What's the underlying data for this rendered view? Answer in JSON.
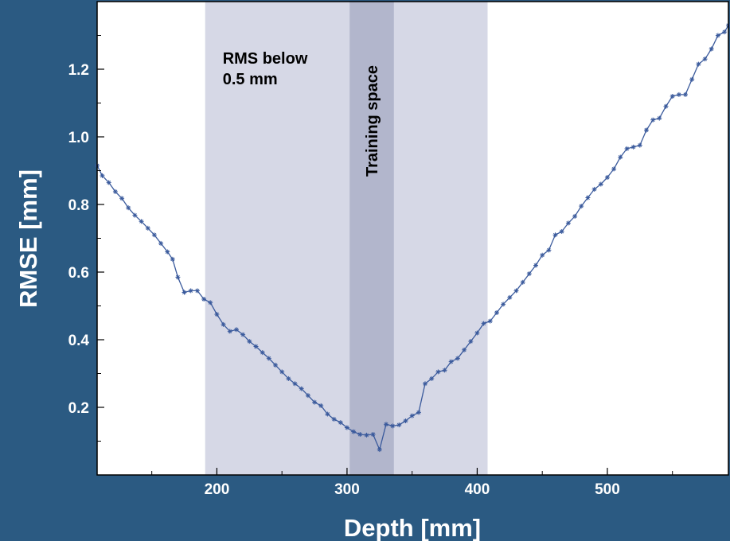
{
  "chart_data": {
    "type": "line",
    "xlabel": "Depth [mm]",
    "ylabel": "RMSE [mm]",
    "xlim": [
      108,
      593
    ],
    "ylim": [
      0.0,
      1.4
    ],
    "xticks": [
      200,
      300,
      400,
      500
    ],
    "yticks": [
      0.2,
      0.4,
      0.6,
      0.8,
      1.0,
      1.2
    ],
    "xtick_labels": [
      "200",
      "300",
      "400",
      "500"
    ],
    "ytick_labels": [
      "0.2",
      "0.4",
      "0.6",
      "0.8",
      "1.0",
      "1.2"
    ],
    "grid": false,
    "regions": [
      {
        "label": "RMS below 0.5 mm",
        "label_lines": [
          "RMS below",
          "0.5 mm"
        ],
        "x_start": 191,
        "x_end": 408,
        "color": "#d6d8e6"
      },
      {
        "label": "Training space",
        "x_start": 302,
        "x_end": 336,
        "color": "#b2b6cc"
      }
    ],
    "series": [
      {
        "color": "#3a5a9c",
        "marker": "*",
        "x": [
          108,
          112,
          117,
          122,
          127,
          132,
          137,
          142,
          147,
          152,
          157,
          162,
          166,
          170,
          175,
          180,
          185,
          190,
          195,
          200,
          205,
          210,
          215,
          220,
          225,
          230,
          235,
          240,
          245,
          250,
          255,
          260,
          265,
          270,
          275,
          280,
          285,
          290,
          295,
          300,
          305,
          310,
          315,
          320,
          325,
          330,
          335,
          340,
          345,
          350,
          355,
          360,
          365,
          370,
          375,
          380,
          385,
          390,
          395,
          400,
          405,
          410,
          415,
          420,
          425,
          430,
          435,
          440,
          445,
          450,
          455,
          460,
          465,
          470,
          475,
          480,
          485,
          490,
          495,
          500,
          505,
          510,
          515,
          520,
          525,
          530,
          535,
          540,
          545,
          550,
          555,
          560,
          565,
          570,
          575,
          580,
          585,
          590,
          593
        ],
        "y": [
          0.915,
          0.885,
          0.865,
          0.838,
          0.818,
          0.79,
          0.768,
          0.75,
          0.73,
          0.71,
          0.685,
          0.66,
          0.638,
          0.585,
          0.54,
          0.545,
          0.545,
          0.52,
          0.51,
          0.475,
          0.445,
          0.425,
          0.43,
          0.415,
          0.395,
          0.38,
          0.362,
          0.345,
          0.325,
          0.305,
          0.285,
          0.27,
          0.255,
          0.235,
          0.215,
          0.205,
          0.18,
          0.165,
          0.155,
          0.14,
          0.128,
          0.12,
          0.118,
          0.12,
          0.075,
          0.15,
          0.145,
          0.148,
          0.16,
          0.175,
          0.185,
          0.27,
          0.285,
          0.305,
          0.31,
          0.335,
          0.345,
          0.37,
          0.395,
          0.42,
          0.448,
          0.455,
          0.48,
          0.505,
          0.525,
          0.545,
          0.57,
          0.595,
          0.62,
          0.65,
          0.665,
          0.71,
          0.72,
          0.745,
          0.765,
          0.795,
          0.82,
          0.845,
          0.86,
          0.88,
          0.905,
          0.94,
          0.965,
          0.97,
          0.975,
          1.02,
          1.05,
          1.055,
          1.09,
          1.12,
          1.125,
          1.125,
          1.17,
          1.215,
          1.23,
          1.26,
          1.3,
          1.31,
          1.33
        ]
      }
    ]
  }
}
